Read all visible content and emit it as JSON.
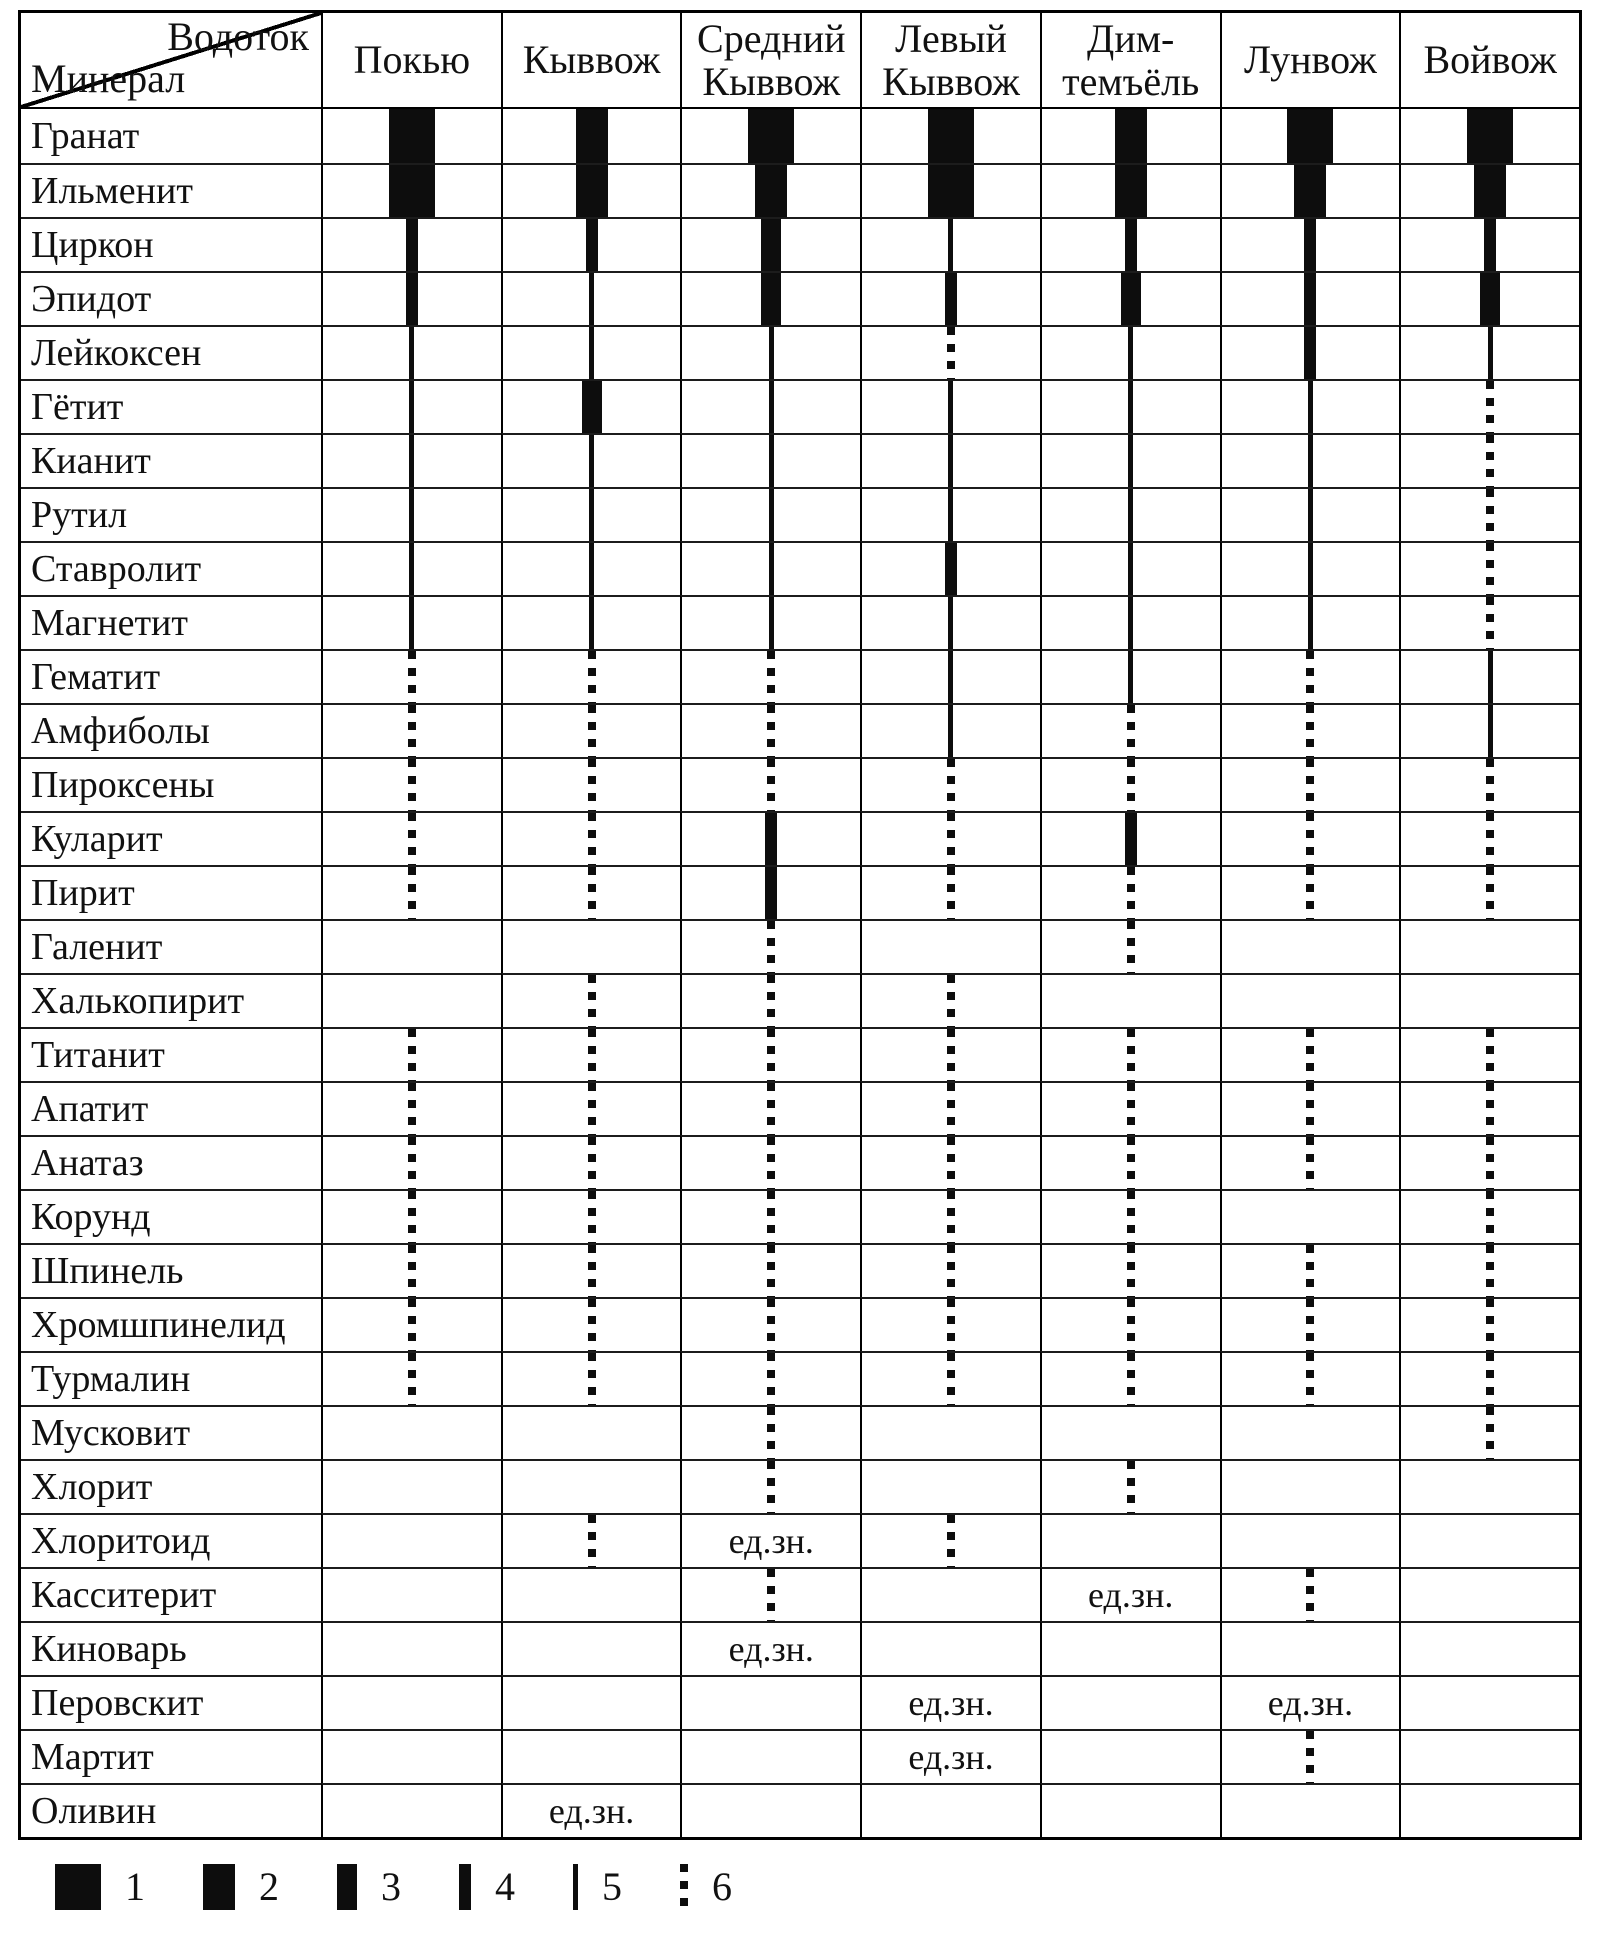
{
  "chart_data": {
    "type": "table",
    "corner_top": "Водоток",
    "corner_bottom": "Минерал",
    "columns": [
      "Покью",
      "Кыввож",
      "Средний Кыввож",
      "Левый Кыввож",
      "Дим-темъёль",
      "Лунвож",
      "Войвож"
    ],
    "column_lines": [
      [
        "Покью"
      ],
      [
        "Кыввож"
      ],
      [
        "Средний",
        "Кыввож"
      ],
      [
        "Левый",
        "Кыввож"
      ],
      [
        "Дим-",
        "темъёль"
      ],
      [
        "Лунвож"
      ],
      [
        "Войвож"
      ]
    ],
    "rows": [
      "Гранат",
      "Ильменит",
      "Циркон",
      "Эпидот",
      "Лейкоксен",
      "Гётит",
      "Кианит",
      "Рутил",
      "Ставролит",
      "Магнетит",
      "Гематит",
      "Амфиболы",
      "Пироксены",
      "Куларит",
      "Пирит",
      "Галенит",
      "Халькопирит",
      "Титанит",
      "Апатит",
      "Анатаз",
      "Корунд",
      "Шпинель",
      "Хромшпинелид",
      "Турмалин",
      "Мусковит",
      "Хлорит",
      "Хлоритоид",
      "Касситерит",
      "Киноварь",
      "Перовскит",
      "Мартит",
      "Оливин"
    ],
    "value_note": "abundance class per legend: 1 widest bar … 5 thin line, 6 dotted line, 0 absent, text = единичные знаки",
    "single_grains_label": "ед.зн.",
    "values": [
      [
        1,
        2,
        1,
        1,
        2,
        1,
        1
      ],
      [
        1,
        2,
        2,
        1,
        2,
        2,
        2
      ],
      [
        4,
        4,
        3,
        5,
        4,
        4,
        4
      ],
      [
        4,
        5,
        3,
        4,
        3,
        4,
        3
      ],
      [
        5,
        5,
        5,
        6,
        5,
        4,
        5
      ],
      [
        5,
        3,
        5,
        5,
        5,
        5,
        6
      ],
      [
        5,
        5,
        5,
        5,
        5,
        5,
        6
      ],
      [
        5,
        5,
        5,
        5,
        5,
        5,
        6
      ],
      [
        5,
        5,
        5,
        4,
        5,
        5,
        6
      ],
      [
        5,
        5,
        5,
        5,
        5,
        5,
        6
      ],
      [
        6,
        6,
        6,
        5,
        5,
        6,
        5
      ],
      [
        6,
        6,
        6,
        5,
        6,
        6,
        5
      ],
      [
        6,
        6,
        6,
        6,
        6,
        6,
        6
      ],
      [
        6,
        6,
        4,
        6,
        4,
        6,
        6
      ],
      [
        6,
        6,
        4,
        6,
        6,
        6,
        6
      ],
      [
        0,
        0,
        6,
        0,
        6,
        0,
        0
      ],
      [
        0,
        6,
        6,
        6,
        0,
        0,
        0
      ],
      [
        6,
        6,
        6,
        6,
        6,
        6,
        6
      ],
      [
        6,
        6,
        6,
        6,
        6,
        6,
        6
      ],
      [
        6,
        6,
        6,
        6,
        6,
        6,
        6
      ],
      [
        6,
        6,
        6,
        6,
        6,
        0,
        6
      ],
      [
        6,
        6,
        6,
        6,
        6,
        6,
        6
      ],
      [
        6,
        6,
        6,
        6,
        6,
        6,
        6
      ],
      [
        6,
        6,
        6,
        6,
        6,
        6,
        6
      ],
      [
        0,
        0,
        6,
        0,
        0,
        0,
        6
      ],
      [
        0,
        0,
        6,
        0,
        6,
        0,
        0
      ],
      [
        0,
        6,
        "ед.зн.",
        6,
        0,
        0,
        0
      ],
      [
        0,
        0,
        6,
        0,
        "ед.зн.",
        6,
        0
      ],
      [
        0,
        0,
        "ед.зн.",
        0,
        0,
        0,
        0
      ],
      [
        0,
        0,
        0,
        "ед.зн.",
        0,
        "ед.зн.",
        0
      ],
      [
        0,
        0,
        0,
        "ед.зн.",
        0,
        6,
        0
      ],
      [
        0,
        "ед.зн.",
        0,
        0,
        0,
        0,
        0
      ]
    ],
    "legend_labels": [
      "1",
      "2",
      "3",
      "4",
      "5",
      "6"
    ],
    "legend_codes": [
      1,
      2,
      3,
      4,
      5,
      6
    ]
  },
  "colors": {
    "ink": "#0d0d0d",
    "frame": "#000000"
  }
}
